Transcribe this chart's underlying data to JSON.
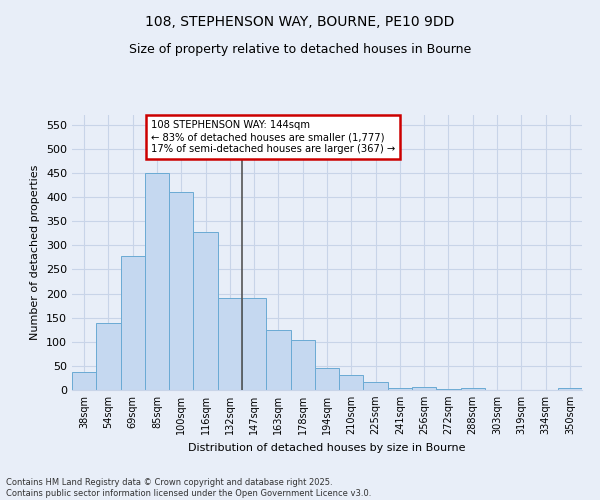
{
  "title_line1": "108, STEPHENSON WAY, BOURNE, PE10 9DD",
  "title_line2": "Size of property relative to detached houses in Bourne",
  "xlabel": "Distribution of detached houses by size in Bourne",
  "ylabel": "Number of detached properties",
  "categories": [
    "38sqm",
    "54sqm",
    "69sqm",
    "85sqm",
    "100sqm",
    "116sqm",
    "132sqm",
    "147sqm",
    "163sqm",
    "178sqm",
    "194sqm",
    "210sqm",
    "225sqm",
    "241sqm",
    "256sqm",
    "272sqm",
    "288sqm",
    "303sqm",
    "319sqm",
    "334sqm",
    "350sqm"
  ],
  "values": [
    37,
    138,
    277,
    450,
    410,
    328,
    190,
    190,
    125,
    103,
    46,
    32,
    17,
    5,
    7,
    3,
    4,
    1,
    1,
    1,
    4
  ],
  "bar_color": "#c5d8f0",
  "bar_edge_color": "#6aaad4",
  "vline_x_index": 7,
  "vline_color": "#555555",
  "annotation_text": "108 STEPHENSON WAY: 144sqm\n← 83% of detached houses are smaller (1,777)\n17% of semi-detached houses are larger (367) →",
  "annotation_box_color": "white",
  "annotation_border_color": "#cc0000",
  "ylim": [
    0,
    570
  ],
  "yticks": [
    0,
    50,
    100,
    150,
    200,
    250,
    300,
    350,
    400,
    450,
    500,
    550
  ],
  "footer_line1": "Contains HM Land Registry data © Crown copyright and database right 2025.",
  "footer_line2": "Contains public sector information licensed under the Open Government Licence v3.0.",
  "background_color": "#e8eef8",
  "grid_color": "#c8d4e8"
}
